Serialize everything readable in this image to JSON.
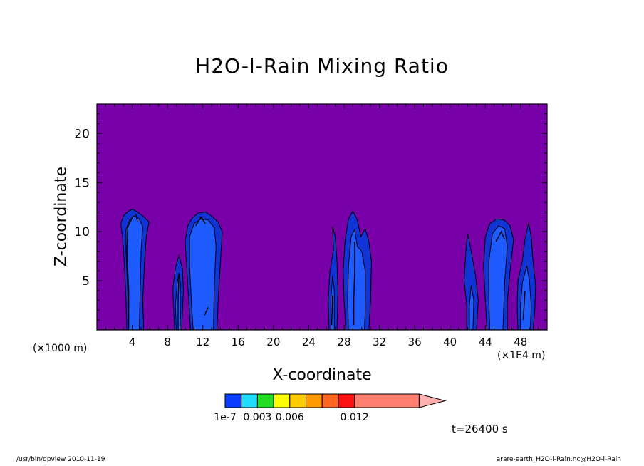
{
  "chart_data": {
    "type": "heatmap",
    "title": "H2O-l-Rain Mixing Ratio",
    "xlabel": "X-coordinate",
    "ylabel": "Z-coordinate",
    "x_unit_left": "(×1000 m)",
    "x_unit_right": "(×1E4 m)",
    "xlim": [
      0,
      51
    ],
    "ylim": [
      0,
      23
    ],
    "x_ticks": [
      4,
      8,
      12,
      16,
      20,
      24,
      28,
      32,
      36,
      40,
      44,
      48
    ],
    "x_tick_labels": [
      "4",
      "8",
      "12",
      "16",
      "20",
      "24",
      "28",
      "32",
      "36",
      "40",
      "44",
      "48"
    ],
    "y_ticks": [
      5,
      10,
      15,
      20
    ],
    "y_tick_labels": [
      "5",
      "10",
      "15",
      "20"
    ],
    "background_color": "#7700a8",
    "colorbar": {
      "colors": [
        "#0a3dff",
        "#22ddff",
        "#22dd22",
        "#ffff00",
        "#ffcc00",
        "#ff9900",
        "#ff6622",
        "#ff1111",
        "#ff7f70",
        "#ffb0b0"
      ],
      "widths": [
        1,
        1,
        1,
        1,
        1,
        1,
        1,
        1,
        4,
        1.6
      ],
      "labels": [
        "1e-7",
        "0.003",
        "0.006",
        "0.012"
      ],
      "label_boundaries": [
        0,
        2,
        4,
        8
      ]
    },
    "regions": [
      {
        "name": "column-x3-outer",
        "color": "#1034d6",
        "points": [
          [
            3.4,
            0
          ],
          [
            3.3,
            3
          ],
          [
            3.1,
            7
          ],
          [
            2.9,
            9.5
          ],
          [
            2.7,
            10.8
          ],
          [
            3.0,
            11.6
          ],
          [
            3.6,
            12.1
          ],
          [
            4.0,
            12.3
          ],
          [
            4.6,
            12.0
          ],
          [
            5.2,
            11.6
          ],
          [
            5.9,
            11.0
          ],
          [
            5.6,
            9.5
          ],
          [
            5.4,
            7
          ],
          [
            5.2,
            3
          ],
          [
            5.3,
            0
          ]
        ]
      },
      {
        "name": "column-x3-inner",
        "color": "#1e5cff",
        "points": [
          [
            3.6,
            0
          ],
          [
            3.5,
            4
          ],
          [
            3.3,
            8
          ],
          [
            3.3,
            10.2
          ],
          [
            3.7,
            11.2
          ],
          [
            4.2,
            11.6
          ],
          [
            4.8,
            11.3
          ],
          [
            5.2,
            10.5
          ],
          [
            5.0,
            8
          ],
          [
            4.9,
            4
          ],
          [
            4.8,
            0
          ]
        ]
      },
      {
        "name": "column-x9-outer",
        "color": "#1034d6",
        "points": [
          [
            8.8,
            0
          ],
          [
            8.7,
            2
          ],
          [
            8.6,
            4.2
          ],
          [
            8.9,
            6.3
          ],
          [
            9.3,
            7.6
          ],
          [
            9.7,
            6.2
          ],
          [
            9.8,
            4
          ],
          [
            9.7,
            2
          ],
          [
            9.6,
            0
          ]
        ]
      },
      {
        "name": "column-x9-inner",
        "color": "#1e5cff",
        "points": [
          [
            9.0,
            0
          ],
          [
            8.9,
            2.5
          ],
          [
            9.1,
            4.8
          ],
          [
            9.3,
            5.8
          ],
          [
            9.5,
            4.6
          ],
          [
            9.5,
            2.2
          ],
          [
            9.4,
            0
          ]
        ]
      },
      {
        "name": "column-x12-outer",
        "color": "#1034d6",
        "points": [
          [
            10.6,
            0
          ],
          [
            10.4,
            3
          ],
          [
            10.2,
            6
          ],
          [
            10.0,
            9
          ],
          [
            10.3,
            10.6
          ],
          [
            10.8,
            11.4
          ],
          [
            11.5,
            11.9
          ],
          [
            12.3,
            12.0
          ],
          [
            13.0,
            11.6
          ],
          [
            13.7,
            11.0
          ],
          [
            14.2,
            10.0
          ],
          [
            14.0,
            7
          ],
          [
            13.8,
            4
          ],
          [
            13.6,
            0
          ]
        ]
      },
      {
        "name": "column-x12-inner",
        "color": "#1e5cff",
        "points": [
          [
            10.9,
            0
          ],
          [
            10.7,
            3
          ],
          [
            10.5,
            6.5
          ],
          [
            10.5,
            9.5
          ],
          [
            11.0,
            10.8
          ],
          [
            11.8,
            11.3
          ],
          [
            12.6,
            11.2
          ],
          [
            13.3,
            10.4
          ],
          [
            13.5,
            8.5
          ],
          [
            13.3,
            4.5
          ],
          [
            13.2,
            0
          ]
        ]
      },
      {
        "name": "column-x27-outer",
        "color": "#1034d6",
        "points": [
          [
            26.3,
            0
          ],
          [
            26.2,
            3
          ],
          [
            26.4,
            6
          ],
          [
            26.8,
            8.2
          ],
          [
            26.7,
            10.5
          ],
          [
            27.0,
            9.5
          ],
          [
            27.2,
            7
          ],
          [
            27.3,
            4
          ],
          [
            27.2,
            0
          ]
        ]
      },
      {
        "name": "column-x27-inner",
        "color": "#1e5cff",
        "points": [
          [
            26.5,
            0
          ],
          [
            26.5,
            3
          ],
          [
            26.7,
            5.5
          ],
          [
            26.9,
            4
          ],
          [
            26.9,
            0
          ]
        ]
      },
      {
        "name": "column-x29-outer",
        "color": "#1034d6",
        "points": [
          [
            28.2,
            0
          ],
          [
            28.0,
            3
          ],
          [
            27.9,
            6
          ],
          [
            28.1,
            9
          ],
          [
            28.5,
            11.3
          ],
          [
            29.0,
            12.1
          ],
          [
            29.5,
            11.2
          ],
          [
            29.9,
            9.5
          ],
          [
            30.4,
            10.3
          ],
          [
            30.8,
            9
          ],
          [
            31.1,
            7
          ],
          [
            31.0,
            3
          ],
          [
            30.8,
            0
          ]
        ]
      },
      {
        "name": "column-x29-inner",
        "color": "#1e5cff",
        "points": [
          [
            28.5,
            0
          ],
          [
            28.4,
            3
          ],
          [
            28.5,
            6.5
          ],
          [
            28.8,
            9.5
          ],
          [
            29.2,
            10.2
          ],
          [
            29.5,
            8.5
          ],
          [
            30.0,
            8
          ],
          [
            30.4,
            6
          ],
          [
            30.4,
            2
          ],
          [
            30.3,
            0
          ]
        ]
      },
      {
        "name": "column-x43-outer",
        "color": "#1034d6",
        "points": [
          [
            41.9,
            0
          ],
          [
            41.9,
            2.5
          ],
          [
            41.6,
            5
          ],
          [
            41.8,
            8
          ],
          [
            42.0,
            9.8
          ],
          [
            42.4,
            8
          ],
          [
            42.9,
            5.5
          ],
          [
            43.2,
            3
          ],
          [
            43.0,
            0
          ]
        ]
      },
      {
        "name": "column-x43-inner",
        "color": "#1e5cff",
        "points": [
          [
            42.2,
            0
          ],
          [
            42.2,
            2.5
          ],
          [
            42.4,
            4.5
          ],
          [
            42.7,
            3
          ],
          [
            42.6,
            0
          ]
        ]
      },
      {
        "name": "column-x45-outer",
        "color": "#1034d6",
        "points": [
          [
            44.2,
            0
          ],
          [
            44.0,
            3
          ],
          [
            43.8,
            6.5
          ],
          [
            44.0,
            9.5
          ],
          [
            44.5,
            10.8
          ],
          [
            45.3,
            11.3
          ],
          [
            46.1,
            11.2
          ],
          [
            46.8,
            10.6
          ],
          [
            47.2,
            9.2
          ],
          [
            46.8,
            6
          ],
          [
            46.5,
            3
          ],
          [
            46.5,
            0
          ]
        ]
      },
      {
        "name": "column-x45-inner",
        "color": "#1e5cff",
        "points": [
          [
            44.5,
            0
          ],
          [
            44.4,
            3
          ],
          [
            44.4,
            7
          ],
          [
            44.8,
            9.8
          ],
          [
            45.5,
            10.6
          ],
          [
            46.2,
            10.3
          ],
          [
            46.5,
            8.5
          ],
          [
            46.2,
            5
          ],
          [
            46.0,
            0
          ]
        ]
      },
      {
        "name": "column-x48-outer",
        "color": "#1034d6",
        "points": [
          [
            47.7,
            0
          ],
          [
            47.6,
            2.5
          ],
          [
            47.7,
            5
          ],
          [
            48.2,
            7
          ],
          [
            48.5,
            9.2
          ],
          [
            48.9,
            10.9
          ],
          [
            49.2,
            9.5
          ],
          [
            49.4,
            7
          ],
          [
            49.7,
            4.5
          ],
          [
            49.6,
            2
          ],
          [
            49.4,
            0
          ]
        ]
      },
      {
        "name": "column-x48-inner",
        "color": "#1e5cff",
        "points": [
          [
            48.0,
            0
          ],
          [
            48.0,
            2.5
          ],
          [
            48.2,
            4.8
          ],
          [
            48.7,
            6.5
          ],
          [
            49.0,
            5
          ],
          [
            49.2,
            2.5
          ],
          [
            49.1,
            0
          ]
        ]
      }
    ],
    "contour_lines": [
      [
        [
          3.6,
          0.2
        ],
        [
          3.6,
          4
        ],
        [
          3.4,
          8
        ],
        [
          3.5,
          10.5
        ],
        [
          4.0,
          11.4
        ]
      ],
      [
        [
          4.4,
          11.8
        ],
        [
          4.6,
          11.0
        ]
      ],
      [
        [
          9.2,
          0
        ],
        [
          9.2,
          3
        ],
        [
          9.3,
          5.5
        ]
      ],
      [
        [
          11.2,
          10.6
        ],
        [
          11.8,
          11.5
        ],
        [
          12.3,
          10.8
        ]
      ],
      [
        [
          12.2,
          1.5
        ],
        [
          12.6,
          2.3
        ]
      ],
      [
        [
          29.1,
          0.5
        ],
        [
          29.1,
          3
        ],
        [
          29.2,
          6
        ],
        [
          29.2,
          9
        ]
      ],
      [
        [
          26.6,
          0.5
        ],
        [
          26.7,
          3.5
        ]
      ],
      [
        [
          45.2,
          9.0
        ],
        [
          45.8,
          10.0
        ],
        [
          46.2,
          9.2
        ]
      ],
      [
        [
          48.3,
          1
        ],
        [
          48.5,
          4
        ]
      ]
    ]
  },
  "annotation": {
    "time": "t=26400 s"
  },
  "footer": {
    "left": "/usr/bin/gpview   2010-11-19",
    "right": "arare-earth_H2O-l-Rain.nc@H2O-l-Rain"
  }
}
